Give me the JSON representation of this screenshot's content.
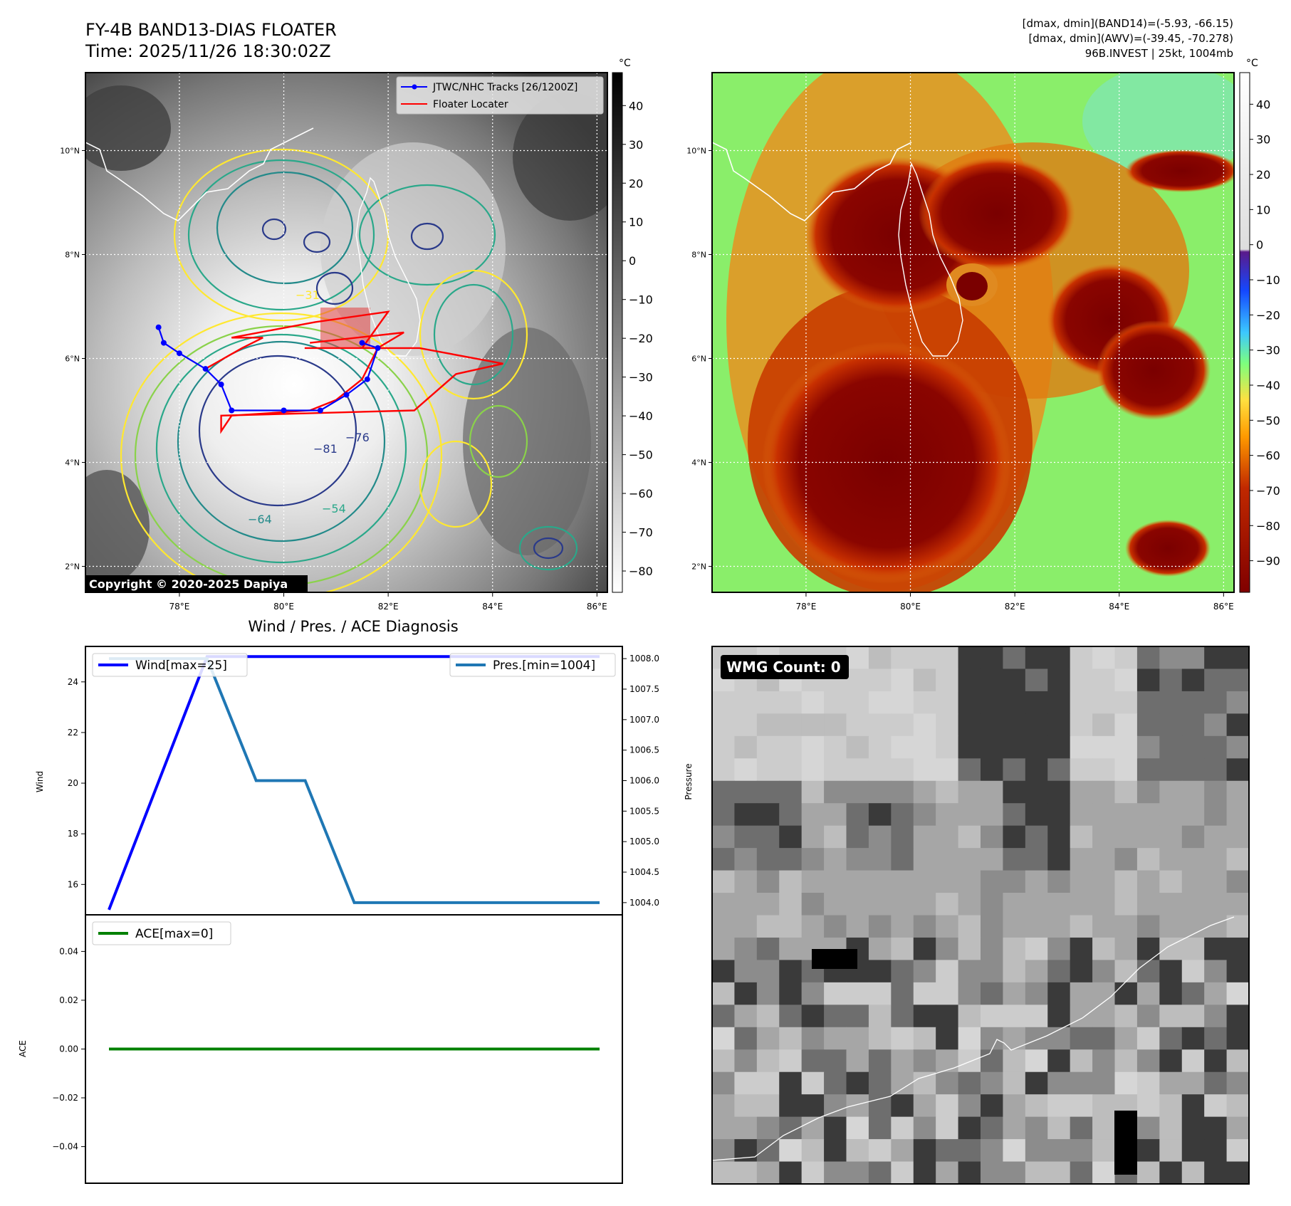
{
  "header": {
    "title_line1": "FY-4B BAND13-DIAS FLOATER",
    "title_line2": "Time: 2025/11/26 18:30:02Z",
    "info_line1": "[dmax, dmin](BAND14)=(-5.93, -66.15)",
    "info_line2": "[dmax, dmin](AWV)=(-39.45, -70.278)",
    "info_line3": "96B.INVEST | 25kt, 1004mb"
  },
  "map_axes": {
    "lon_labels": [
      "78°E",
      "80°E",
      "82°E",
      "84°E",
      "86°E"
    ],
    "lat_labels": [
      "10°N",
      "8°N",
      "6°N",
      "4°N",
      "2°N"
    ],
    "lon_range": [
      76.2,
      86.2
    ],
    "lat_range": [
      1.5,
      11.5
    ]
  },
  "ir_panel": {
    "legend": {
      "track_label": "JTWC/NHC Tracks [26/1200Z]",
      "floater_label": "Floater Locater",
      "track_color": "#0000ff",
      "floater_color": "#ff0000"
    },
    "copyright": "Copyright © 2020-2025 Dapiya",
    "contour_labels": [
      "−31",
      "−54",
      "−64",
      "−76",
      "−81"
    ],
    "colorbar": {
      "unit": "°C",
      "ticks": [
        "40",
        "30",
        "20",
        "10",
        "0",
        "−10",
        "−20",
        "−30",
        "−40",
        "−50",
        "−60",
        "−70",
        "−80"
      ]
    },
    "track_points": [
      {
        "lon": 77.6,
        "lat": 6.6
      },
      {
        "lon": 77.7,
        "lat": 6.3
      },
      {
        "lon": 78.0,
        "lat": 6.1
      },
      {
        "lon": 78.5,
        "lat": 5.8
      },
      {
        "lon": 78.8,
        "lat": 5.5
      },
      {
        "lon": 79.0,
        "lat": 5.0
      },
      {
        "lon": 80.0,
        "lat": 5.0
      },
      {
        "lon": 80.7,
        "lat": 5.0
      },
      {
        "lon": 81.2,
        "lat": 5.3
      },
      {
        "lon": 81.6,
        "lat": 5.6
      },
      {
        "lon": 81.8,
        "lat": 6.2
      },
      {
        "lon": 81.5,
        "lat": 6.3
      }
    ],
    "floater_path": [
      {
        "lon": 78.5,
        "lat": 5.8
      },
      {
        "lon": 79.2,
        "lat": 6.2
      },
      {
        "lon": 79.6,
        "lat": 6.4
      },
      {
        "lon": 79.0,
        "lat": 6.4
      },
      {
        "lon": 80.6,
        "lat": 6.7
      },
      {
        "lon": 82.0,
        "lat": 6.9
      },
      {
        "lon": 81.5,
        "lat": 6.2
      },
      {
        "lon": 80.4,
        "lat": 6.2
      },
      {
        "lon": 82.6,
        "lat": 6.2
      },
      {
        "lon": 84.2,
        "lat": 5.9
      },
      {
        "lon": 83.3,
        "lat": 5.7
      },
      {
        "lon": 82.5,
        "lat": 5.0
      },
      {
        "lon": 78.8,
        "lat": 4.9
      },
      {
        "lon": 78.8,
        "lat": 4.6
      },
      {
        "lon": 79.0,
        "lat": 4.9
      },
      {
        "lon": 80.5,
        "lat": 5.0
      },
      {
        "lon": 81.0,
        "lat": 5.2
      },
      {
        "lon": 81.5,
        "lat": 5.6
      },
      {
        "lon": 81.8,
        "lat": 6.2
      },
      {
        "lon": 82.3,
        "lat": 6.5
      },
      {
        "lon": 80.5,
        "lat": 6.3
      }
    ]
  },
  "wv_panel": {
    "colorbar": {
      "unit": "°C",
      "ticks": [
        "40",
        "30",
        "20",
        "10",
        "0",
        "−10",
        "−20",
        "−30",
        "−40",
        "−50",
        "−60",
        "−70",
        "−80",
        "−90"
      ]
    }
  },
  "diagnosis": {
    "title": "Wind / Pres. / ACE Diagnosis",
    "wind_ylabel": "Wind",
    "pressure_ylabel": "Pressure",
    "ace_ylabel": "ACE",
    "wind_ticks": [
      "24",
      "22",
      "20",
      "18",
      "16"
    ],
    "pressure_ticks": [
      "1008.0",
      "1007.5",
      "1007.0",
      "1006.5",
      "1006.0",
      "1005.5",
      "1005.0",
      "1004.5",
      "1004.0"
    ],
    "ace_ticks": [
      "0.04",
      "0.02",
      "0.00",
      "−0.02",
      "−0.04"
    ],
    "wind_legend": "Wind[max=25]",
    "pressure_legend": "Pres.[min=1004]",
    "ace_legend": "ACE[max=0]",
    "wind_color": "#0000ff",
    "pressure_color": "#1f77b4",
    "ace_color": "#008000"
  },
  "wmg_panel": {
    "badge": "WMG Count: 0"
  },
  "chart_data": [
    {
      "type": "line",
      "title": "Wind / Pres. / ACE Diagnosis",
      "ylabel": "Wind",
      "x": [
        0,
        1,
        2,
        3,
        4,
        5,
        6,
        7,
        8,
        9,
        10
      ],
      "series": [
        {
          "name": "Wind[max=25]",
          "values": [
            15,
            20,
            25,
            25,
            25,
            25,
            25,
            25,
            25,
            25,
            25
          ]
        }
      ],
      "ylim": [
        14.8,
        25.4
      ]
    },
    {
      "type": "line",
      "ylabel": "Pressure",
      "x": [
        0,
        1,
        2,
        3,
        4,
        5,
        6,
        7,
        8,
        9,
        10
      ],
      "series": [
        {
          "name": "Pres.[min=1004]",
          "values": [
            1008,
            1008,
            1008,
            1006,
            1006,
            1004,
            1004,
            1004,
            1004,
            1004,
            1004
          ]
        }
      ],
      "ylim": [
        1003.8,
        1008.2
      ]
    },
    {
      "type": "line",
      "ylabel": "ACE",
      "x": [
        0,
        1,
        2,
        3,
        4,
        5,
        6,
        7,
        8,
        9,
        10
      ],
      "series": [
        {
          "name": "ACE[max=0]",
          "values": [
            0,
            0,
            0,
            0,
            0,
            0,
            0,
            0,
            0,
            0,
            0
          ]
        }
      ],
      "ylim": [
        -0.055,
        0.055
      ]
    }
  ]
}
